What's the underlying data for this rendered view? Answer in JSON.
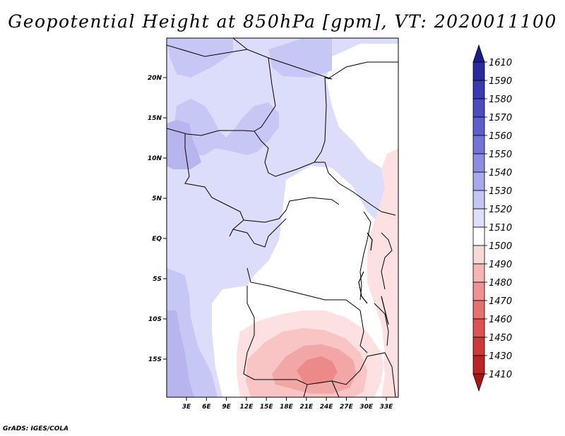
{
  "title": "Geopotential Height at 850hPa [gpm], VT: 2020011100",
  "footer": "GrADS: IGES/COLA",
  "axes": {
    "lat_labels": [
      "20N",
      "15N",
      "10N",
      "5N",
      "EQ",
      "5S",
      "10S",
      "15S"
    ],
    "lon_labels": [
      "3E",
      "6E",
      "9E",
      "12E",
      "15E",
      "18E",
      "21E",
      "24E",
      "27E",
      "30E",
      "33E"
    ]
  },
  "colorbar": {
    "levels": [
      "1610",
      "1590",
      "1580",
      "1570",
      "1560",
      "1550",
      "1540",
      "1530",
      "1520",
      "1510",
      "1500",
      "1490",
      "1480",
      "1470",
      "1460",
      "1450",
      "1430",
      "1410"
    ],
    "colors": [
      "#1c1c8c",
      "#2a2aa0",
      "#3a3ab2",
      "#4b4bc2",
      "#5e5ece",
      "#7474d8",
      "#8c8ce2",
      "#a8a8ec",
      "#c5c5f4",
      "#dedefa",
      "#ffffff",
      "#fbd8d8",
      "#f6b6b6",
      "#ef9292",
      "#e87070",
      "#de5252",
      "#d03838",
      "#bc2424",
      "#a61818"
    ]
  },
  "field_colors": {
    "c1540": "#b8b4ee",
    "c1530": "#c7c7f5",
    "c1520": "#dcdcfb",
    "c1510": "#ffffff",
    "c1500": "#fde0e0",
    "c1490": "#f8c4c4",
    "c1480": "#f2a6a6",
    "c1470": "#ec8a8a"
  }
}
